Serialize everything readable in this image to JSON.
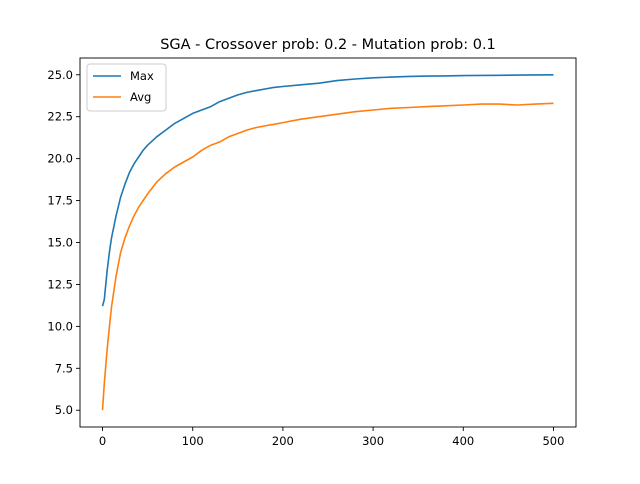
{
  "chart_data": {
    "type": "line",
    "title": "SGA - Crossover prob: 0.2 - Mutation prob: 0.1",
    "xlabel": "",
    "ylabel": "",
    "xlim": [
      -25,
      525
    ],
    "ylim": [
      4.0,
      26.0
    ],
    "xticks": [
      0,
      100,
      200,
      300,
      400,
      500
    ],
    "xtick_labels": [
      "0",
      "100",
      "200",
      "300",
      "400",
      "500"
    ],
    "yticks": [
      5.0,
      7.5,
      10.0,
      12.5,
      15.0,
      17.5,
      20.0,
      22.5,
      25.0
    ],
    "ytick_labels": [
      "5.0",
      "7.5",
      "10.0",
      "12.5",
      "15.0",
      "17.5",
      "20.0",
      "22.5",
      "25.0"
    ],
    "grid": false,
    "legend_position": "top-left",
    "series": [
      {
        "name": "Max",
        "color": "#1f77b4",
        "x": [
          0,
          2,
          5,
          8,
          10,
          15,
          20,
          25,
          30,
          35,
          40,
          45,
          50,
          60,
          70,
          80,
          90,
          100,
          110,
          120,
          130,
          140,
          150,
          160,
          170,
          180,
          190,
          200,
          220,
          240,
          260,
          280,
          300,
          320,
          340,
          360,
          380,
          400,
          420,
          440,
          460,
          480,
          500
        ],
        "values": [
          11.2,
          11.6,
          13.3,
          14.6,
          15.3,
          16.6,
          17.7,
          18.5,
          19.2,
          19.7,
          20.1,
          20.5,
          20.8,
          21.3,
          21.7,
          22.1,
          22.4,
          22.7,
          22.9,
          23.1,
          23.4,
          23.6,
          23.8,
          23.95,
          24.05,
          24.15,
          24.25,
          24.3,
          24.4,
          24.5,
          24.65,
          24.75,
          24.82,
          24.86,
          24.9,
          24.92,
          24.93,
          24.95,
          24.96,
          24.97,
          24.98,
          24.99,
          25.0
        ]
      },
      {
        "name": "Avg",
        "color": "#ff7f0e",
        "x": [
          0,
          2,
          5,
          8,
          10,
          15,
          20,
          25,
          30,
          35,
          40,
          45,
          50,
          60,
          70,
          80,
          90,
          100,
          110,
          120,
          130,
          140,
          150,
          160,
          170,
          180,
          190,
          200,
          220,
          240,
          260,
          280,
          300,
          320,
          340,
          360,
          380,
          400,
          420,
          440,
          460,
          480,
          500
        ],
        "values": [
          5.0,
          6.6,
          8.6,
          10.2,
          11.2,
          13.0,
          14.4,
          15.3,
          16.0,
          16.6,
          17.1,
          17.5,
          17.9,
          18.6,
          19.1,
          19.5,
          19.8,
          20.1,
          20.5,
          20.8,
          21.0,
          21.3,
          21.5,
          21.7,
          21.85,
          21.95,
          22.05,
          22.15,
          22.35,
          22.5,
          22.65,
          22.8,
          22.9,
          23.0,
          23.05,
          23.1,
          23.15,
          23.2,
          23.25,
          23.25,
          23.2,
          23.25,
          23.3
        ]
      }
    ]
  }
}
